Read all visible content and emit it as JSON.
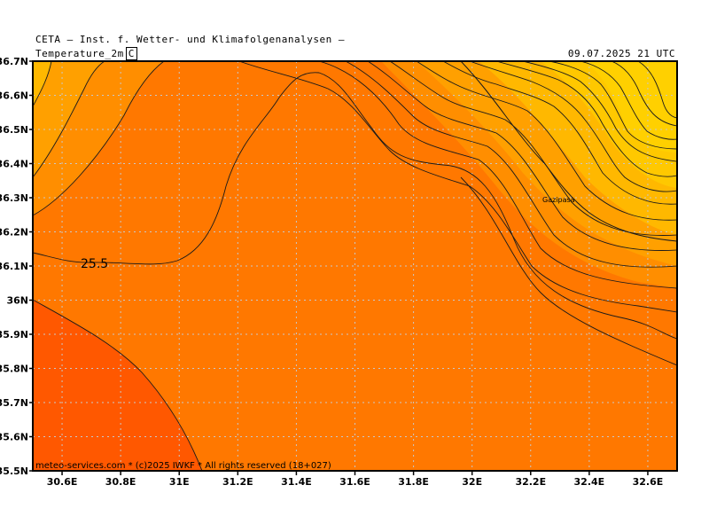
{
  "header": {
    "institute": "CETA – Inst. f. Wetter- und Klimafolgenanalysen –",
    "variable": "Temperature_2m",
    "unit": "C",
    "valid_time": "09.07.2025 21 UTC"
  },
  "axes": {
    "x_ticks": [
      "30.6E",
      "30.8E",
      "31E",
      "31.2E",
      "31.4E",
      "31.6E",
      "31.8E",
      "32E",
      "32.2E",
      "32.4E",
      "32.6E"
    ],
    "y_ticks": [
      "36.7N",
      "36.6N",
      "36.5N",
      "36.4N",
      "36.3N",
      "36.2N",
      "36.1N",
      "36N",
      "35.9N",
      "35.8N",
      "35.7N",
      "35.6N",
      "35.5N"
    ],
    "lon_range": [
      30.5,
      32.7
    ],
    "lat_range": [
      35.5,
      36.7
    ]
  },
  "labels": {
    "isotherm": "25.5",
    "city": "Gazipasa",
    "copyright": "meteo-services.com * (c)2025 IWKF * All rights reserved (18+027)"
  },
  "colors": {
    "sea_warm": "#ff7800",
    "sea_hot": "#ff5800",
    "coast_band1": "#ff8e00",
    "coast_band2": "#ffa000",
    "land_warm": "#ffb800",
    "land_mid": "#ffc800",
    "land_hot": "#ffd000",
    "contour": "#1a1a1a",
    "grid": "#c8c8c8"
  }
}
